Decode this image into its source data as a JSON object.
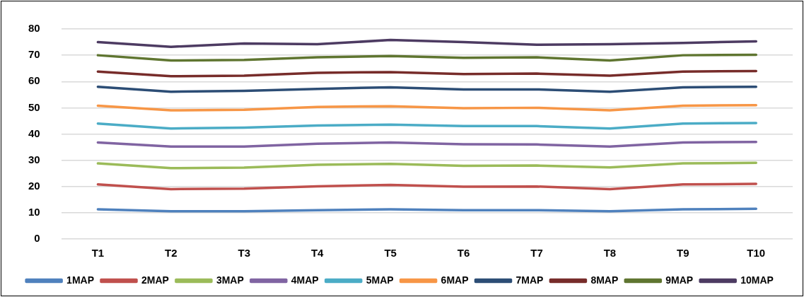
{
  "chart_data": {
    "type": "line",
    "categories": [
      "T1",
      "T2",
      "T3",
      "T4",
      "T5",
      "T6",
      "T7",
      "T8",
      "T9",
      "T10"
    ],
    "ylim": [
      0,
      80
    ],
    "yticks": [
      0,
      10,
      20,
      30,
      40,
      50,
      60,
      70,
      80
    ],
    "grid": "y",
    "legend": "bottom",
    "marker": "none",
    "line_style": "solid",
    "series": [
      {
        "name": "1MAP",
        "color": "#4f81bd",
        "values": [
          11.3,
          10.6,
          10.6,
          11,
          11.3,
          11,
          11,
          10.6,
          11.3,
          11.5
        ]
      },
      {
        "name": "2MAP",
        "color": "#c0504d",
        "values": [
          20.8,
          19,
          19.2,
          20.1,
          20.6,
          19.9,
          20,
          19,
          20.8,
          21
        ]
      },
      {
        "name": "3MAP",
        "color": "#9bbb59",
        "values": [
          28.8,
          27,
          27.2,
          28.3,
          28.6,
          27.9,
          28,
          27.3,
          28.8,
          29
        ]
      },
      {
        "name": "4MAP",
        "color": "#8064a2",
        "values": [
          36.8,
          35.2,
          35.2,
          36.3,
          36.8,
          36.1,
          36,
          35.2,
          36.8,
          37
        ]
      },
      {
        "name": "5MAP",
        "color": "#4bacc6",
        "values": [
          44,
          42.1,
          42.4,
          43.2,
          43.6,
          43,
          43,
          42.1,
          44,
          44.2
        ]
      },
      {
        "name": "6MAP",
        "color": "#f79646",
        "values": [
          50.8,
          49,
          49.2,
          50.3,
          50.6,
          49.8,
          50,
          49,
          50.8,
          51
        ]
      },
      {
        "name": "7MAP",
        "color": "#2c4d75",
        "values": [
          58,
          56.1,
          56.4,
          57.2,
          57.8,
          57,
          57,
          56.1,
          57.8,
          58
        ]
      },
      {
        "name": "8MAP",
        "color": "#772c2a",
        "values": [
          63.8,
          62,
          62.2,
          63.3,
          63.6,
          62.8,
          63,
          62.2,
          63.8,
          64
        ]
      },
      {
        "name": "9MAP",
        "color": "#5f7530",
        "values": [
          70,
          68,
          68.2,
          69.2,
          69.7,
          69,
          69.2,
          68,
          70,
          70.2
        ]
      },
      {
        "name": "10MAP",
        "color": "#4d3b62",
        "values": [
          75,
          73.2,
          74.5,
          74.2,
          75.8,
          75,
          74,
          74.2,
          74.7,
          75.3
        ]
      }
    ]
  }
}
